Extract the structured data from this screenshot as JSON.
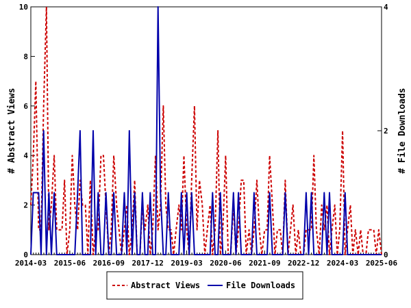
{
  "chart_data": {
    "type": "line",
    "title": "",
    "ylabel": "# Abstract Views",
    "y2label": "# File Downloads",
    "ylim": [
      0,
      10
    ],
    "y2lim": [
      0,
      4
    ],
    "yticks": [
      "0",
      "2",
      "4",
      "6",
      "8",
      "10"
    ],
    "y2ticks": [
      "0",
      "2",
      "4"
    ],
    "xrange": [
      2014.17,
      2025.42
    ],
    "xticks": [
      {
        "x": 2014.17,
        "label": "2014-03"
      },
      {
        "x": 2015.42,
        "label": "2015-06"
      },
      {
        "x": 2016.67,
        "label": "2016-09"
      },
      {
        "x": 2017.92,
        "label": "2017-12"
      },
      {
        "x": 2019.17,
        "label": "2019-03"
      },
      {
        "x": 2020.42,
        "label": "2020-06"
      },
      {
        "x": 2021.67,
        "label": "2021-09"
      },
      {
        "x": 2022.92,
        "label": "2022-12"
      },
      {
        "x": 2024.17,
        "label": "2024-03"
      },
      {
        "x": 2025.42,
        "label": "2025-06"
      }
    ],
    "legend_position": "bottom",
    "series": [
      {
        "name": "Abstract Views",
        "axis": "left",
        "color": "#cc0000",
        "style": "dashed",
        "x": [
          2014.17,
          2014.25,
          2014.33,
          2014.42,
          2014.5,
          2014.58,
          2014.67,
          2014.75,
          2014.83,
          2014.92,
          2015.0,
          2015.08,
          2015.17,
          2015.25,
          2015.33,
          2015.42,
          2015.5,
          2015.58,
          2015.67,
          2015.75,
          2015.83,
          2015.92,
          2016.0,
          2016.08,
          2016.17,
          2016.25,
          2016.33,
          2016.42,
          2016.5,
          2016.58,
          2016.67,
          2016.75,
          2016.83,
          2016.92,
          2017.0,
          2017.08,
          2017.17,
          2017.25,
          2017.33,
          2017.42,
          2017.5,
          2017.58,
          2017.67,
          2017.75,
          2017.83,
          2017.92,
          2018.0,
          2018.08,
          2018.17,
          2018.25,
          2018.33,
          2018.42,
          2018.5,
          2018.58,
          2018.67,
          2018.75,
          2018.83,
          2018.92,
          2019.0,
          2019.08,
          2019.17,
          2019.25,
          2019.33,
          2019.42,
          2019.5,
          2019.58,
          2019.67,
          2019.75,
          2019.83,
          2019.92,
          2020.0,
          2020.08,
          2020.17,
          2020.25,
          2020.33,
          2020.42,
          2020.5,
          2020.58,
          2020.67,
          2020.75,
          2020.83,
          2020.92,
          2021.0,
          2021.08,
          2021.17,
          2021.25,
          2021.33,
          2021.42,
          2021.5,
          2021.58,
          2021.67,
          2021.75,
          2021.83,
          2021.92,
          2022.0,
          2022.08,
          2022.17,
          2022.25,
          2022.33,
          2022.42,
          2022.5,
          2022.58,
          2022.67,
          2022.75,
          2022.83,
          2022.92,
          2023.0,
          2023.08,
          2023.17,
          2023.25,
          2023.33,
          2023.42,
          2023.5,
          2023.58,
          2023.67,
          2023.75,
          2023.83,
          2023.92,
          2024.0,
          2024.08,
          2024.17,
          2024.25,
          2024.33,
          2024.42,
          2024.5,
          2024.58,
          2024.67,
          2024.75,
          2024.83,
          2024.92,
          2025.0,
          2025.08,
          2025.17,
          2025.25,
          2025.33,
          2025.42
        ],
        "values": [
          2,
          4,
          7,
          1,
          1,
          6,
          10,
          1,
          2,
          4,
          1,
          1,
          1,
          3,
          0,
          1,
          4,
          2,
          1,
          3,
          2,
          2,
          0,
          3,
          0,
          1,
          1,
          4,
          4,
          2,
          0,
          1,
          4,
          2,
          1,
          0,
          1,
          2,
          0,
          1,
          3,
          0,
          0,
          2,
          1,
          2,
          0,
          1,
          4,
          1,
          2,
          6,
          2,
          1,
          1,
          0,
          1,
          2,
          1,
          4,
          1,
          0,
          3,
          6,
          1,
          3,
          2,
          0,
          1,
          2,
          0,
          1,
          5,
          0,
          1,
          4,
          0,
          0,
          2,
          0,
          1,
          3,
          3,
          0,
          1,
          0,
          1,
          3,
          1,
          0,
          1,
          1,
          4,
          2,
          0,
          1,
          1,
          0,
          3,
          0,
          1,
          2,
          0,
          1,
          0,
          0,
          1,
          1,
          1,
          4,
          1,
          0,
          2,
          1,
          2,
          0,
          1,
          2,
          0,
          1,
          5,
          0,
          1,
          2,
          0,
          1,
          0,
          1,
          0,
          0,
          1,
          1,
          1,
          0,
          1,
          0
        ]
      },
      {
        "name": "File Downloads",
        "axis": "right",
        "color": "#0000aa",
        "style": "solid",
        "x": [
          2014.17,
          2014.25,
          2014.33,
          2014.42,
          2014.5,
          2014.58,
          2014.67,
          2014.75,
          2014.83,
          2014.92,
          2015.0,
          2015.08,
          2015.17,
          2015.25,
          2015.33,
          2015.42,
          2015.5,
          2015.58,
          2015.67,
          2015.75,
          2015.83,
          2015.92,
          2016.0,
          2016.08,
          2016.17,
          2016.25,
          2016.33,
          2016.42,
          2016.5,
          2016.58,
          2016.67,
          2016.75,
          2016.83,
          2016.92,
          2017.0,
          2017.08,
          2017.17,
          2017.25,
          2017.33,
          2017.42,
          2017.5,
          2017.58,
          2017.67,
          2017.75,
          2017.83,
          2017.92,
          2018.0,
          2018.08,
          2018.17,
          2018.25,
          2018.33,
          2018.42,
          2018.5,
          2018.58,
          2018.67,
          2018.75,
          2018.83,
          2018.92,
          2019.0,
          2019.08,
          2019.17,
          2019.25,
          2019.33,
          2019.42,
          2019.5,
          2019.58,
          2019.67,
          2019.75,
          2019.83,
          2019.92,
          2020.0,
          2020.08,
          2020.17,
          2020.25,
          2020.33,
          2020.42,
          2020.5,
          2020.58,
          2020.67,
          2020.75,
          2020.83,
          2020.92,
          2021.0,
          2021.08,
          2021.17,
          2021.25,
          2021.33,
          2021.42,
          2021.5,
          2021.58,
          2021.67,
          2021.75,
          2021.83,
          2021.92,
          2022.0,
          2022.08,
          2022.17,
          2022.25,
          2022.33,
          2022.42,
          2022.5,
          2022.58,
          2022.67,
          2022.75,
          2022.83,
          2022.92,
          2023.0,
          2023.08,
          2023.17,
          2023.25,
          2023.33,
          2023.42,
          2023.5,
          2023.58,
          2023.67,
          2023.75,
          2023.83,
          2023.92,
          2024.0,
          2024.08,
          2024.17,
          2024.25,
          2024.33,
          2024.42,
          2024.5,
          2024.58,
          2024.67,
          2024.75,
          2024.83,
          2024.92,
          2025.0,
          2025.08,
          2025.17,
          2025.25,
          2025.33,
          2025.42
        ],
        "values": [
          0,
          1,
          1,
          1,
          0,
          2,
          0,
          1,
          0,
          1,
          0,
          0,
          0,
          0,
          0,
          0,
          0,
          0,
          1,
          2,
          0,
          0,
          0,
          0,
          2,
          0,
          1,
          0,
          0,
          1,
          0,
          0,
          1,
          0,
          0,
          0,
          1,
          0,
          2,
          0,
          1,
          0,
          0,
          1,
          0,
          0,
          1,
          0,
          0,
          4,
          1,
          0,
          0,
          1,
          0,
          0,
          0,
          0,
          1,
          0,
          1,
          0,
          1,
          0,
          0,
          0,
          0,
          0,
          0,
          0,
          1,
          0,
          0,
          1,
          0,
          0,
          0,
          0,
          1,
          0,
          1,
          0,
          0,
          0,
          0,
          0,
          1,
          0,
          0,
          0,
          0,
          0,
          1,
          0,
          0,
          0,
          0,
          0,
          1,
          0,
          0,
          0,
          0,
          0,
          0,
          0,
          1,
          0,
          1,
          0,
          0,
          0,
          0,
          1,
          0,
          1,
          0,
          0,
          0,
          0,
          0,
          1,
          0,
          0,
          0,
          0,
          0,
          0,
          0,
          0,
          0,
          0,
          0,
          0,
          0,
          0
        ]
      }
    ]
  }
}
